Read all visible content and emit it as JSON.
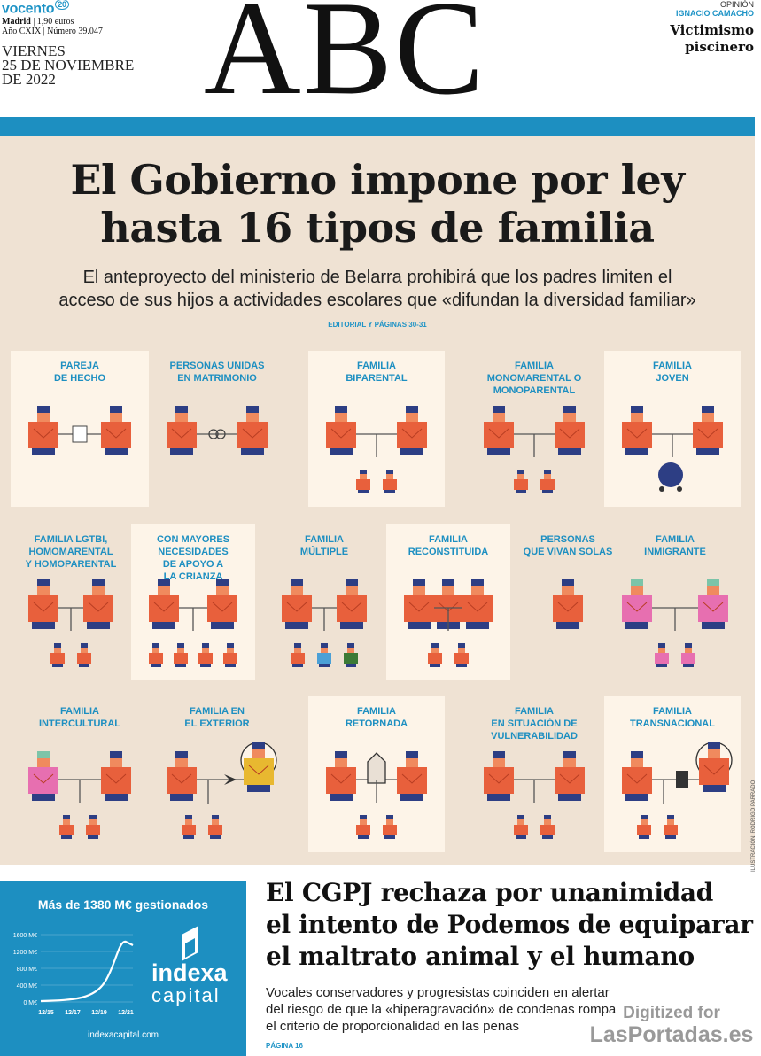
{
  "masthead": {
    "group_brand": "vocento",
    "group_badge": "20",
    "edition_line1": "Madrid | 1,90 euros",
    "edition_city": "Madrid",
    "edition_price": " | 1,90 euros",
    "edition_line2": "Año CXIX | Número 39.047",
    "date_day": "VIERNES",
    "date_line2": "25 DE NOVIEMBRE",
    "date_line3": "DE 2022",
    "logo": "ABC",
    "opinion_label": "OPINIÓN",
    "opinion_author": "IGNACIO CAMACHO",
    "opinion_title_l1": "Victimismo",
    "opinion_title_l2": "piscinero"
  },
  "feature": {
    "headline_l1": "El Gobierno impone por ley",
    "headline_l2": "hasta 16 tipos de familia",
    "deck_l1": "El anteproyecto del ministerio de Belarra prohibirá que los padres limiten el",
    "deck_l2": "acceso de sus hijos a actividades escolares que «difundan la diversidad familiar»",
    "editorial": "EDITORIAL Y PÁGINAS 30-31",
    "credit": "ILUSTRACIÓN: RODRIGO PARRADO",
    "tiles": [
      {
        "title": "PAREJA\nDE HECHO"
      },
      {
        "title": "PERSONAS UNIDAS\nEN MATRIMONIO"
      },
      {
        "title": "FAMILIA\nBIPARENTAL"
      },
      {
        "title": "FAMILIA\nMONOMARENTAL O\nMONOPARENTAL"
      },
      {
        "title": "FAMILIA\nJOVEN"
      },
      {
        "title": "FAMILIA  LGTBI,\nHOMOMARENTAL\nY HOMOPARENTAL"
      },
      {
        "title": "CON MAYORES\nNECESIDADES\nDE APOYO A\nLA CRIANZA"
      },
      {
        "title": "FAMILIA\nMÚLTIPLE"
      },
      {
        "title": "FAMILIA\nRECONSTITUIDA"
      },
      {
        "title": "PERSONAS\nQUE VIVAN SOLAS"
      },
      {
        "title": "FAMILIA\nINMIGRANTE"
      },
      {
        "title": "FAMILIA\nINTERCULTURAL"
      },
      {
        "title": "FAMILIA EN\nEL EXTERIOR"
      },
      {
        "title": "FAMILIA\nRETORNADA"
      },
      {
        "title": "FAMILIA\nEN SITUACIÓN DE\nVULNERABILIDAD"
      },
      {
        "title": "FAMILIA\nTRANSNACIONAL"
      }
    ]
  },
  "ad": {
    "title": "Más de 1380 M€ gestionados",
    "brand_l1": "indexa",
    "brand_l2": "capital",
    "url": "indexacapital.com",
    "y_ticks": [
      "1600 M€",
      "1200 M€",
      "800 M€",
      "400 M€",
      "0 M€"
    ],
    "x_ticks": [
      "12/15",
      "12/17",
      "12/19",
      "12/21"
    ]
  },
  "story": {
    "headline_l1": "El CGPJ rechaza por unanimidad",
    "headline_l2": "el intento de Podemos de equiparar",
    "headline_l3": "el maltrato animal y el humano",
    "deck_l1": "Vocales conservadores y progresistas coinciden en alertar",
    "deck_l2": "del riesgo de que la «hiperagravación» de condenas rompa",
    "deck_l3": "el criterio de proporcionalidad en las penas",
    "page": "PÁGINA 16"
  },
  "watermark": {
    "line1": "Digitized for",
    "line2": "LasPortadas.es"
  },
  "colors": {
    "accent": "#1d8fc1",
    "figure": "#e8603c",
    "figure_dark": "#2d3e84",
    "feature_bg": "#efe2d3",
    "tile_bg": "#fdf4e8"
  }
}
